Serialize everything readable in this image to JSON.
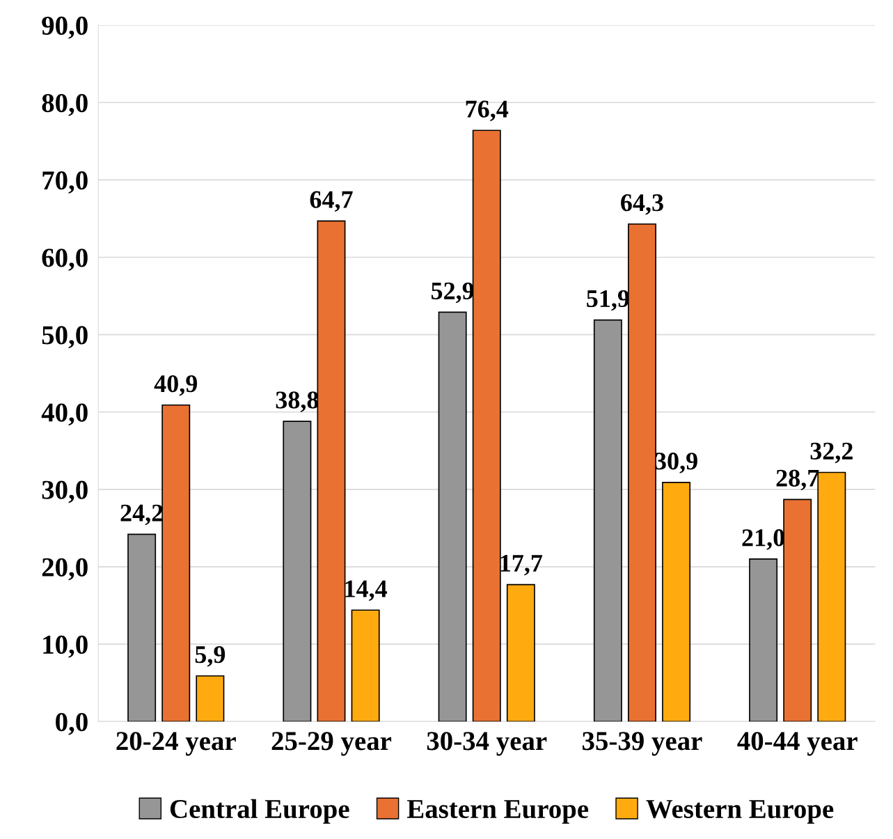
{
  "chart_data": {
    "type": "bar",
    "categories": [
      "20-24 year",
      "25-29 year",
      "30-34 year",
      "35-39 year",
      "40-44 year"
    ],
    "series": [
      {
        "name": "Central Europe",
        "color": "#969696",
        "values": [
          24.2,
          38.8,
          52.9,
          51.9,
          21.0
        ],
        "value_labels": [
          "24,2",
          "38,8",
          "52,9",
          "51,9",
          "21,0"
        ]
      },
      {
        "name": "Eastern Europe",
        "color": "#e97132",
        "values": [
          40.9,
          64.7,
          76.4,
          64.3,
          28.7
        ],
        "value_labels": [
          "40,9",
          "64,7",
          "76,4",
          "64,3",
          "28,7"
        ]
      },
      {
        "name": "Western Europe",
        "color": "#ffab10",
        "values": [
          5.9,
          14.4,
          17.7,
          30.9,
          32.2
        ],
        "value_labels": [
          "5,9",
          "14,4",
          "17,7",
          "30,9",
          "32,2"
        ]
      }
    ],
    "ylim": [
      0,
      90
    ],
    "yticks": [
      {
        "value": 0,
        "label": "0,0"
      },
      {
        "value": 10,
        "label": "10,0"
      },
      {
        "value": 20,
        "label": "20,0"
      },
      {
        "value": 30,
        "label": "30,0"
      },
      {
        "value": 40,
        "label": "40,0"
      },
      {
        "value": 50,
        "label": "50,0"
      },
      {
        "value": 60,
        "label": "60,0"
      },
      {
        "value": 70,
        "label": "70,0"
      },
      {
        "value": 80,
        "label": "80,0"
      },
      {
        "value": 90,
        "label": "90,0"
      }
    ],
    "grid": "y",
    "legend": "bottom"
  }
}
